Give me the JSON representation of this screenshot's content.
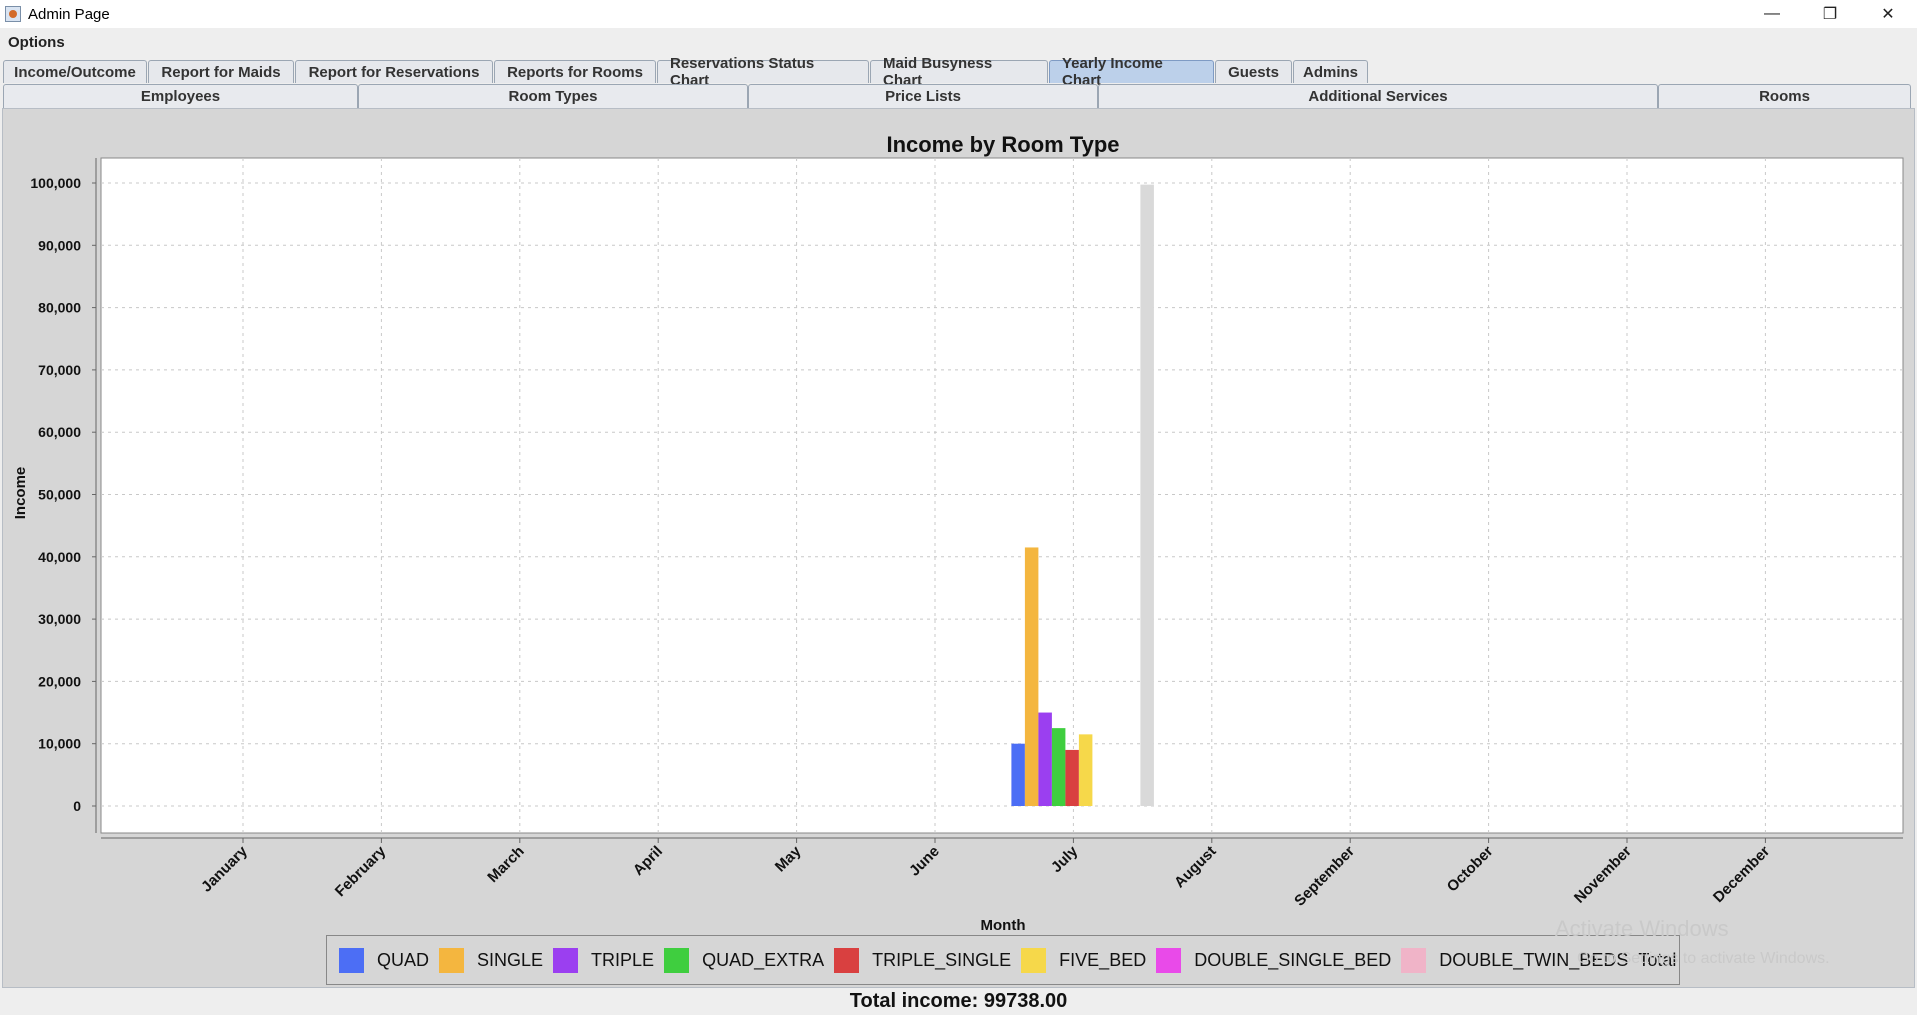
{
  "window": {
    "title": "Admin Page",
    "controls": {
      "minimize": "—",
      "restore": "❐",
      "close": "✕"
    }
  },
  "menu": {
    "items": [
      {
        "label": "Options"
      }
    ]
  },
  "tabs_row1": [
    {
      "label": "Income/Outcome",
      "selected": false
    },
    {
      "label": "Report for Maids",
      "selected": false
    },
    {
      "label": "Report for Reservations",
      "selected": false
    },
    {
      "label": "Reports for Rooms",
      "selected": false
    },
    {
      "label": "Reservations Status Chart",
      "selected": false
    },
    {
      "label": "Maid Busyness Chart",
      "selected": false
    },
    {
      "label": "Yearly Income Chart",
      "selected": true
    },
    {
      "label": "Guests",
      "selected": false
    },
    {
      "label": "Admins",
      "selected": false
    }
  ],
  "tabs_row2": [
    {
      "label": "Employees"
    },
    {
      "label": "Room Types"
    },
    {
      "label": "Price Lists"
    },
    {
      "label": "Additional Services"
    },
    {
      "label": "Rooms"
    }
  ],
  "chart_data": {
    "type": "bar",
    "title": "Income by Room Type",
    "xlabel": "Month",
    "ylabel": "Income",
    "ylim": [
      0,
      100000
    ],
    "yticks": [
      "0",
      "10,000",
      "20,000",
      "30,000",
      "40,000",
      "50,000",
      "60,000",
      "70,000",
      "80,000",
      "90,000",
      "100,000"
    ],
    "grid": true,
    "legend_position": "bottom",
    "categories": [
      "January",
      "February",
      "March",
      "April",
      "May",
      "June",
      "July",
      "August",
      "September",
      "October",
      "November",
      "December"
    ],
    "series": [
      {
        "name": "QUAD",
        "color": "#4c6ef5",
        "values": [
          0,
          0,
          0,
          0,
          0,
          0,
          10000,
          0,
          0,
          0,
          0,
          0
        ]
      },
      {
        "name": "SINGLE",
        "color": "#f4b63f",
        "values": [
          0,
          0,
          0,
          0,
          0,
          0,
          41500,
          0,
          0,
          0,
          0,
          0
        ]
      },
      {
        "name": "TRIPLE",
        "color": "#9b3ff0",
        "values": [
          0,
          0,
          0,
          0,
          0,
          0,
          15000,
          0,
          0,
          0,
          0,
          0
        ]
      },
      {
        "name": "QUAD_EXTRA",
        "color": "#3fce3f",
        "values": [
          0,
          0,
          0,
          0,
          0,
          0,
          12500,
          0,
          0,
          0,
          0,
          0
        ]
      },
      {
        "name": "TRIPLE_SINGLE",
        "color": "#d94040",
        "values": [
          0,
          0,
          0,
          0,
          0,
          0,
          9000,
          0,
          0,
          0,
          0,
          0
        ]
      },
      {
        "name": "FIVE_BED",
        "color": "#f6d84a",
        "values": [
          0,
          0,
          0,
          0,
          0,
          0,
          11500,
          0,
          0,
          0,
          0,
          0
        ]
      },
      {
        "name": "DOUBLE_SINGLE_BED",
        "color": "#e94ae9",
        "values": [
          0,
          0,
          0,
          0,
          0,
          0,
          0,
          0,
          0,
          0,
          0,
          0
        ]
      },
      {
        "name": "DOUBLE_TWIN_BEDS",
        "color": "#f0b4c8",
        "values": [
          0,
          0,
          0,
          0,
          0,
          0,
          0,
          0,
          0,
          0,
          0,
          0
        ]
      },
      {
        "name": "Total",
        "color": "#d9d9d9",
        "values": [
          0,
          0,
          0,
          0,
          0,
          0,
          99738,
          0,
          0,
          0,
          0,
          0
        ]
      }
    ]
  },
  "watermark": {
    "line1": "Activate Windows",
    "line2": "Go to Settings to activate Windows."
  },
  "footer": {
    "total_text": "Total income: 99738.00"
  }
}
